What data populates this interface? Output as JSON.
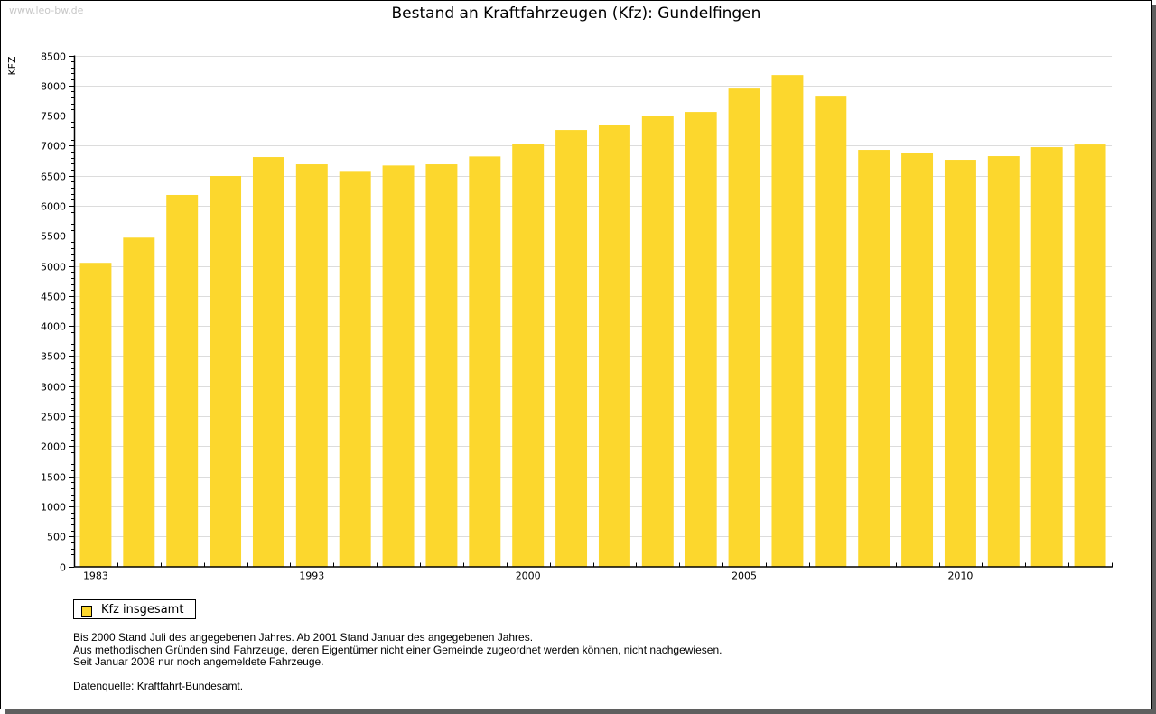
{
  "watermark": "www.leo-bw.de",
  "chart_data": {
    "type": "bar",
    "title": "Bestand an Kraftfahrzeugen (Kfz): Gundelfingen",
    "xlabel": "",
    "ylabel": "KFZ",
    "ylim": [
      0,
      8500
    ],
    "yticks": [
      0,
      500,
      1000,
      1500,
      2000,
      2500,
      3000,
      3500,
      4000,
      4500,
      5000,
      5500,
      6000,
      6500,
      7000,
      7500,
      8000,
      8500
    ],
    "grid": true,
    "categories": [
      "1983",
      "",
      "",
      "",
      "",
      "1993",
      "",
      "",
      "",
      "",
      "2000",
      "",
      "",
      "",
      "",
      "2005",
      "",
      "",
      "",
      "",
      "2010",
      "",
      "",
      ""
    ],
    "series": [
      {
        "name": "Kfz insgesamt",
        "color": "#fcd72d",
        "values": [
          5050,
          5470,
          6180,
          6495,
          6810,
          6690,
          6580,
          6670,
          6690,
          6820,
          7030,
          7260,
          7350,
          7490,
          7560,
          7950,
          8175,
          7830,
          6930,
          6885,
          6765,
          6825,
          6975,
          7020
        ]
      }
    ],
    "legend": "bottom-left"
  },
  "legend": {
    "label": "Kfz insgesamt"
  },
  "notes": [
    "Bis 2000 Stand Juli des angegebenen Jahres. Ab 2001 Stand Januar des angegebenen Jahres.",
    "Aus methodischen Gründen sind Fahrzeuge, deren Eigentümer nicht einer Gemeinde zugeordnet werden können, nicht nachgewiesen.",
    "Seit Januar 2008 nur noch angemeldete Fahrzeuge."
  ],
  "source": "Datenquelle: Kraftfahrt-Bundesamt."
}
